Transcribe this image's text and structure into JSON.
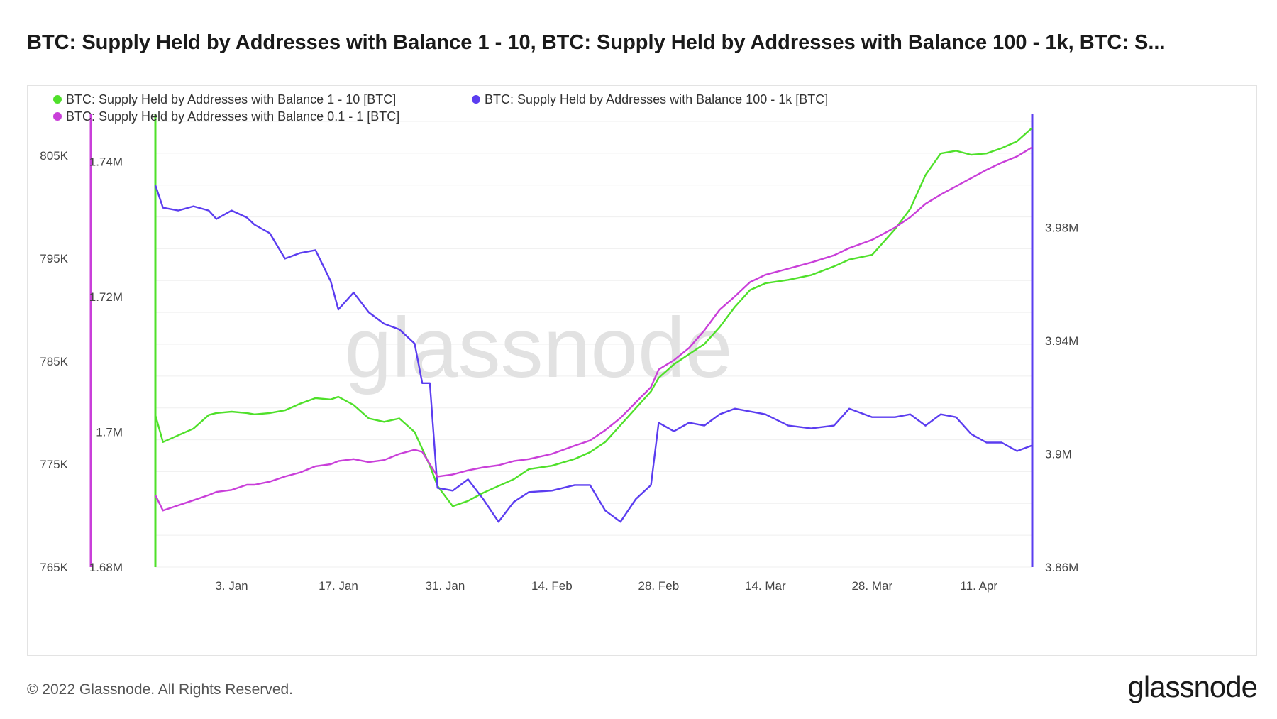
{
  "header": {
    "title": "BTC: Supply Held by Addresses with Balance 1 - 10, BTC: Supply Held by Addresses with Balance 100 - 1k, BTC: S..."
  },
  "footer": {
    "copyright": "© 2022 Glassnode. All Rights Reserved.",
    "logo_text": "glassnode"
  },
  "watermark": "glassnode",
  "colors": {
    "series_1_10": "#4fe02a",
    "series_100_1k": "#5b3df0",
    "series_0_1_1": "#c93fd9",
    "grid": "#efefef"
  },
  "chart_data": {
    "type": "line",
    "x_ticks": [
      "3. Jan",
      "17. Jan",
      "31. Jan",
      "14. Feb",
      "28. Feb",
      "14. Mar",
      "28. Mar",
      "11. Apr"
    ],
    "x_range": [
      "2021-12-24",
      "2022-04-18"
    ],
    "axes": {
      "left_outer": {
        "ticks": [
          "805K",
          "795K",
          "785K",
          "775K",
          "765K"
        ],
        "range": [
          765000,
          809000
        ]
      },
      "left_inner": {
        "ticks": [
          "1.74M",
          "1.72M",
          "1.7M",
          "1.68M"
        ],
        "range": [
          1680000,
          1747000
        ]
      },
      "right": {
        "ticks": [
          "3.98M",
          "3.94M",
          "3.9M",
          "3.86M"
        ],
        "range": [
          3860000,
          4020000
        ]
      }
    },
    "grid": true,
    "legend_position": "top-left",
    "series": [
      {
        "name": "BTC: Supply Held by Addresses with Balance 1 - 10 [BTC]",
        "axis": "left_inner",
        "color": "#4fe02a",
        "x": [
          "2021-12-24",
          "2021-12-25",
          "2021-12-27",
          "2021-12-29",
          "2021-12-31",
          "2022-01-01",
          "2022-01-03",
          "2022-01-05",
          "2022-01-06",
          "2022-01-08",
          "2022-01-10",
          "2022-01-12",
          "2022-01-14",
          "2022-01-16",
          "2022-01-17",
          "2022-01-19",
          "2022-01-21",
          "2022-01-23",
          "2022-01-25",
          "2022-01-27",
          "2022-01-28",
          "2022-01-29",
          "2022-01-30",
          "2022-02-01",
          "2022-02-03",
          "2022-02-05",
          "2022-02-07",
          "2022-02-09",
          "2022-02-11",
          "2022-02-14",
          "2022-02-17",
          "2022-02-19",
          "2022-02-21",
          "2022-02-23",
          "2022-02-25",
          "2022-02-27",
          "2022-02-28",
          "2022-03-02",
          "2022-03-04",
          "2022-03-06",
          "2022-03-08",
          "2022-03-10",
          "2022-03-12",
          "2022-03-14",
          "2022-03-17",
          "2022-03-20",
          "2022-03-23",
          "2022-03-25",
          "2022-03-28",
          "2022-03-31",
          "2022-04-02",
          "2022-04-04",
          "2022-04-06",
          "2022-04-08",
          "2022-04-10",
          "2022-04-12",
          "2022-04-14",
          "2022-04-16",
          "2022-04-18"
        ],
        "y": [
          1702500,
          1698500,
          1699500,
          1700500,
          1702500,
          1702800,
          1703000,
          1702800,
          1702600,
          1702800,
          1703200,
          1704200,
          1705000,
          1704800,
          1705200,
          1704000,
          1702000,
          1701500,
          1702000,
          1700000,
          1697500,
          1695000,
          1692000,
          1689000,
          1689800,
          1691000,
          1692000,
          1693000,
          1694500,
          1695000,
          1696000,
          1697000,
          1698500,
          1701000,
          1703500,
          1706000,
          1708000,
          1710000,
          1711500,
          1713000,
          1715500,
          1718500,
          1721000,
          1722000,
          1722500,
          1723200,
          1724500,
          1725500,
          1726200,
          1730000,
          1733000,
          1738000,
          1741200,
          1741600,
          1741000,
          1741200,
          1742000,
          1743000,
          1745000
        ]
      },
      {
        "name": "BTC: Supply Held by Addresses with Balance 100 - 1k [BTC]",
        "axis": "right",
        "color": "#5b3df0",
        "x": [
          "2021-12-24",
          "2021-12-25",
          "2021-12-27",
          "2021-12-29",
          "2021-12-31",
          "2022-01-01",
          "2022-01-03",
          "2022-01-05",
          "2022-01-06",
          "2022-01-08",
          "2022-01-10",
          "2022-01-12",
          "2022-01-14",
          "2022-01-16",
          "2022-01-17",
          "2022-01-19",
          "2022-01-21",
          "2022-01-23",
          "2022-01-25",
          "2022-01-27",
          "2022-01-28",
          "2022-01-29",
          "2022-01-30",
          "2022-02-01",
          "2022-02-03",
          "2022-02-05",
          "2022-02-07",
          "2022-02-09",
          "2022-02-11",
          "2022-02-14",
          "2022-02-17",
          "2022-02-19",
          "2022-02-21",
          "2022-02-23",
          "2022-02-25",
          "2022-02-27",
          "2022-02-28",
          "2022-03-02",
          "2022-03-04",
          "2022-03-06",
          "2022-03-08",
          "2022-03-10",
          "2022-03-12",
          "2022-03-14",
          "2022-03-17",
          "2022-03-20",
          "2022-03-23",
          "2022-03-25",
          "2022-03-28",
          "2022-03-31",
          "2022-04-02",
          "2022-04-04",
          "2022-04-06",
          "2022-04-08",
          "2022-04-10",
          "2022-04-12",
          "2022-04-14",
          "2022-04-16",
          "2022-04-18"
        ],
        "y": [
          3995000,
          3987000,
          3986000,
          3987500,
          3986000,
          3983000,
          3986000,
          3983500,
          3981000,
          3978000,
          3969000,
          3971000,
          3972000,
          3961000,
          3951000,
          3957000,
          3950000,
          3946000,
          3944000,
          3939000,
          3925000,
          3925000,
          3888000,
          3887000,
          3891000,
          3884000,
          3876000,
          3883000,
          3886500,
          3887000,
          3889000,
          3889000,
          3880000,
          3876000,
          3884000,
          3889000,
          3911000,
          3908000,
          3911000,
          3910000,
          3914000,
          3916000,
          3915000,
          3914000,
          3910000,
          3909000,
          3910000,
          3916000,
          3913000,
          3913000,
          3914000,
          3910000,
          3914000,
          3913000,
          3907000,
          3904000,
          3904000,
          3901000,
          3903000
        ]
      },
      {
        "name": "BTC: Supply Held by Addresses with Balance 0.1 - 1 [BTC]",
        "axis": "left_outer",
        "color": "#c93fd9",
        "x": [
          "2021-12-24",
          "2021-12-25",
          "2021-12-27",
          "2021-12-29",
          "2021-12-31",
          "2022-01-01",
          "2022-01-03",
          "2022-01-05",
          "2022-01-06",
          "2022-01-08",
          "2022-01-10",
          "2022-01-12",
          "2022-01-14",
          "2022-01-16",
          "2022-01-17",
          "2022-01-19",
          "2022-01-21",
          "2022-01-23",
          "2022-01-25",
          "2022-01-27",
          "2022-01-28",
          "2022-01-29",
          "2022-01-30",
          "2022-02-01",
          "2022-02-03",
          "2022-02-05",
          "2022-02-07",
          "2022-02-09",
          "2022-02-11",
          "2022-02-14",
          "2022-02-17",
          "2022-02-19",
          "2022-02-21",
          "2022-02-23",
          "2022-02-25",
          "2022-02-27",
          "2022-02-28",
          "2022-03-02",
          "2022-03-04",
          "2022-03-06",
          "2022-03-08",
          "2022-03-10",
          "2022-03-12",
          "2022-03-14",
          "2022-03-17",
          "2022-03-20",
          "2022-03-23",
          "2022-03-25",
          "2022-03-28",
          "2022-03-31",
          "2022-04-02",
          "2022-04-04",
          "2022-04-06",
          "2022-04-08",
          "2022-04-10",
          "2022-04-12",
          "2022-04-14",
          "2022-04-16",
          "2022-04-18"
        ],
        "y": [
          772000,
          770500,
          771000,
          771500,
          772000,
          772300,
          772500,
          773000,
          773000,
          773300,
          773800,
          774200,
          774800,
          775000,
          775300,
          775500,
          775200,
          775400,
          776000,
          776400,
          776200,
          775000,
          773800,
          774000,
          774400,
          774700,
          774900,
          775300,
          775500,
          776000,
          776800,
          777300,
          778300,
          779500,
          781000,
          782500,
          784200,
          785100,
          786300,
          788000,
          790000,
          791300,
          792700,
          793400,
          794000,
          794600,
          795300,
          796000,
          796800,
          798000,
          799000,
          800300,
          801200,
          802000,
          802800,
          803600,
          804300,
          804900,
          805800
        ]
      }
    ]
  }
}
